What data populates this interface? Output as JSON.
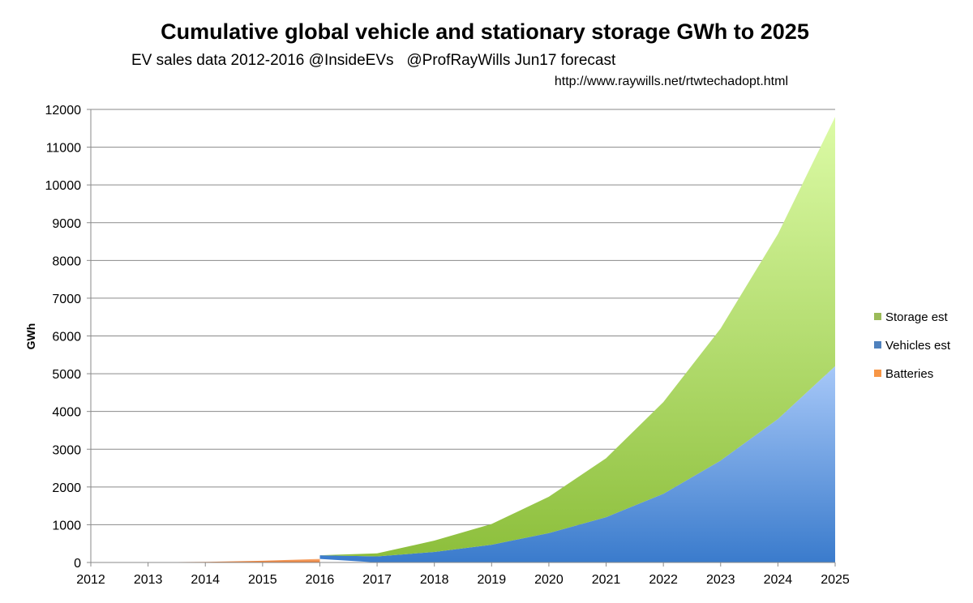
{
  "chart_data": {
    "type": "area",
    "stacked": true,
    "title": "Cumulative global vehicle and stationary storage GWh to 2025",
    "subtitle": "EV sales data 2012-2016 @InsideEVs   @ProfRayWills Jun17 forecast",
    "source_url": "http://www.raywills.net/rtwtechadopt.html",
    "xlabel": "",
    "ylabel": "GWh",
    "ylim": [
      0,
      12000
    ],
    "y_ticks": [
      0,
      1000,
      2000,
      3000,
      4000,
      5000,
      6000,
      7000,
      8000,
      9000,
      10000,
      11000,
      12000
    ],
    "categories": [
      "2012",
      "2013",
      "2014",
      "2015",
      "2016",
      "2017",
      "2018",
      "2019",
      "2020",
      "2021",
      "2022",
      "2023",
      "2024",
      "2025"
    ],
    "grid": true,
    "legend_position": "right",
    "series": [
      {
        "name": "Batteries",
        "color": "#F79646",
        "values": [
          2,
          5,
          15,
          45,
          95,
          null,
          null,
          null,
          null,
          null,
          null,
          null,
          null,
          null
        ]
      },
      {
        "name": "Vehicles est",
        "color": "#4F81BD",
        "values": [
          null,
          null,
          null,
          null,
          95,
          160,
          280,
          470,
          780,
          1200,
          1820,
          2700,
          3800,
          5200
        ]
      },
      {
        "name": "Storage est",
        "color": "#9BBB59",
        "values": [
          null,
          null,
          null,
          null,
          0,
          80,
          300,
          550,
          960,
          1560,
          2430,
          3500,
          4900,
          6600
        ]
      }
    ]
  }
}
